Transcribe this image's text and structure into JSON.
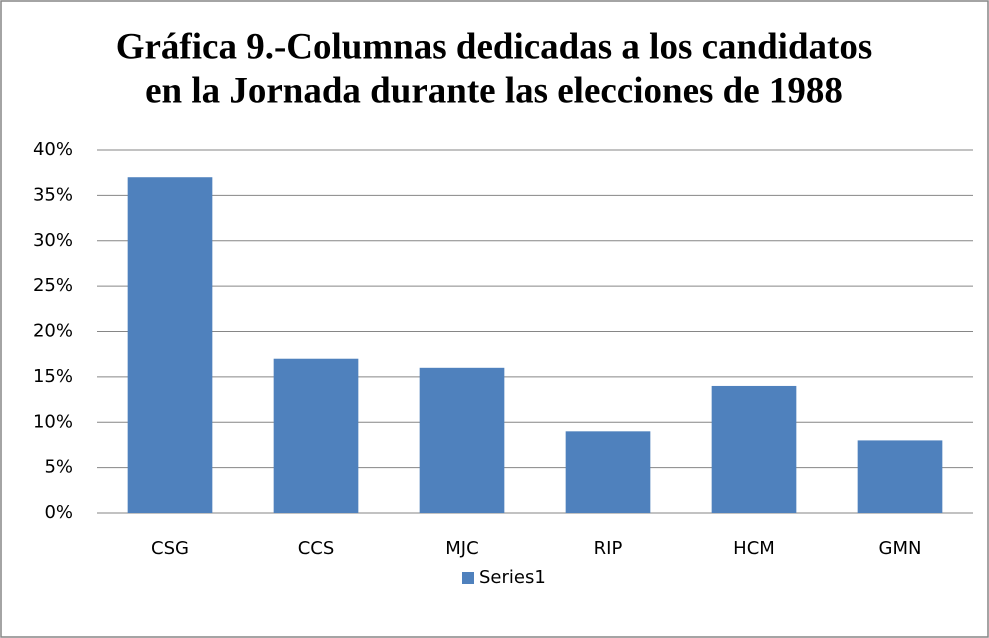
{
  "chart_data": {
    "type": "bar",
    "title": [
      "Gráfica 9.-Columnas dedicadas a los candidatos",
      "en la Jornada durante las elecciones de 1988"
    ],
    "categories": [
      "CSG",
      "CCS",
      "MJC",
      "RIP",
      "HCM",
      "GMN"
    ],
    "series": [
      {
        "name": "Series1",
        "color": "#4f81bd",
        "values": [
          37,
          17,
          16,
          9,
          14,
          8
        ]
      }
    ],
    "ylim": [
      0,
      40
    ],
    "yticks": [
      {
        "value": 0,
        "label": "0%"
      },
      {
        "value": 5,
        "label": "5%"
      },
      {
        "value": 10,
        "label": "10%"
      },
      {
        "value": 15,
        "label": "15%"
      },
      {
        "value": 20,
        "label": "20%"
      },
      {
        "value": 25,
        "label": "25%"
      },
      {
        "value": 30,
        "label": "30%"
      },
      {
        "value": 35,
        "label": "35%"
      },
      {
        "value": 40,
        "label": "40%"
      }
    ],
    "grid": true,
    "legend": "bottom"
  }
}
